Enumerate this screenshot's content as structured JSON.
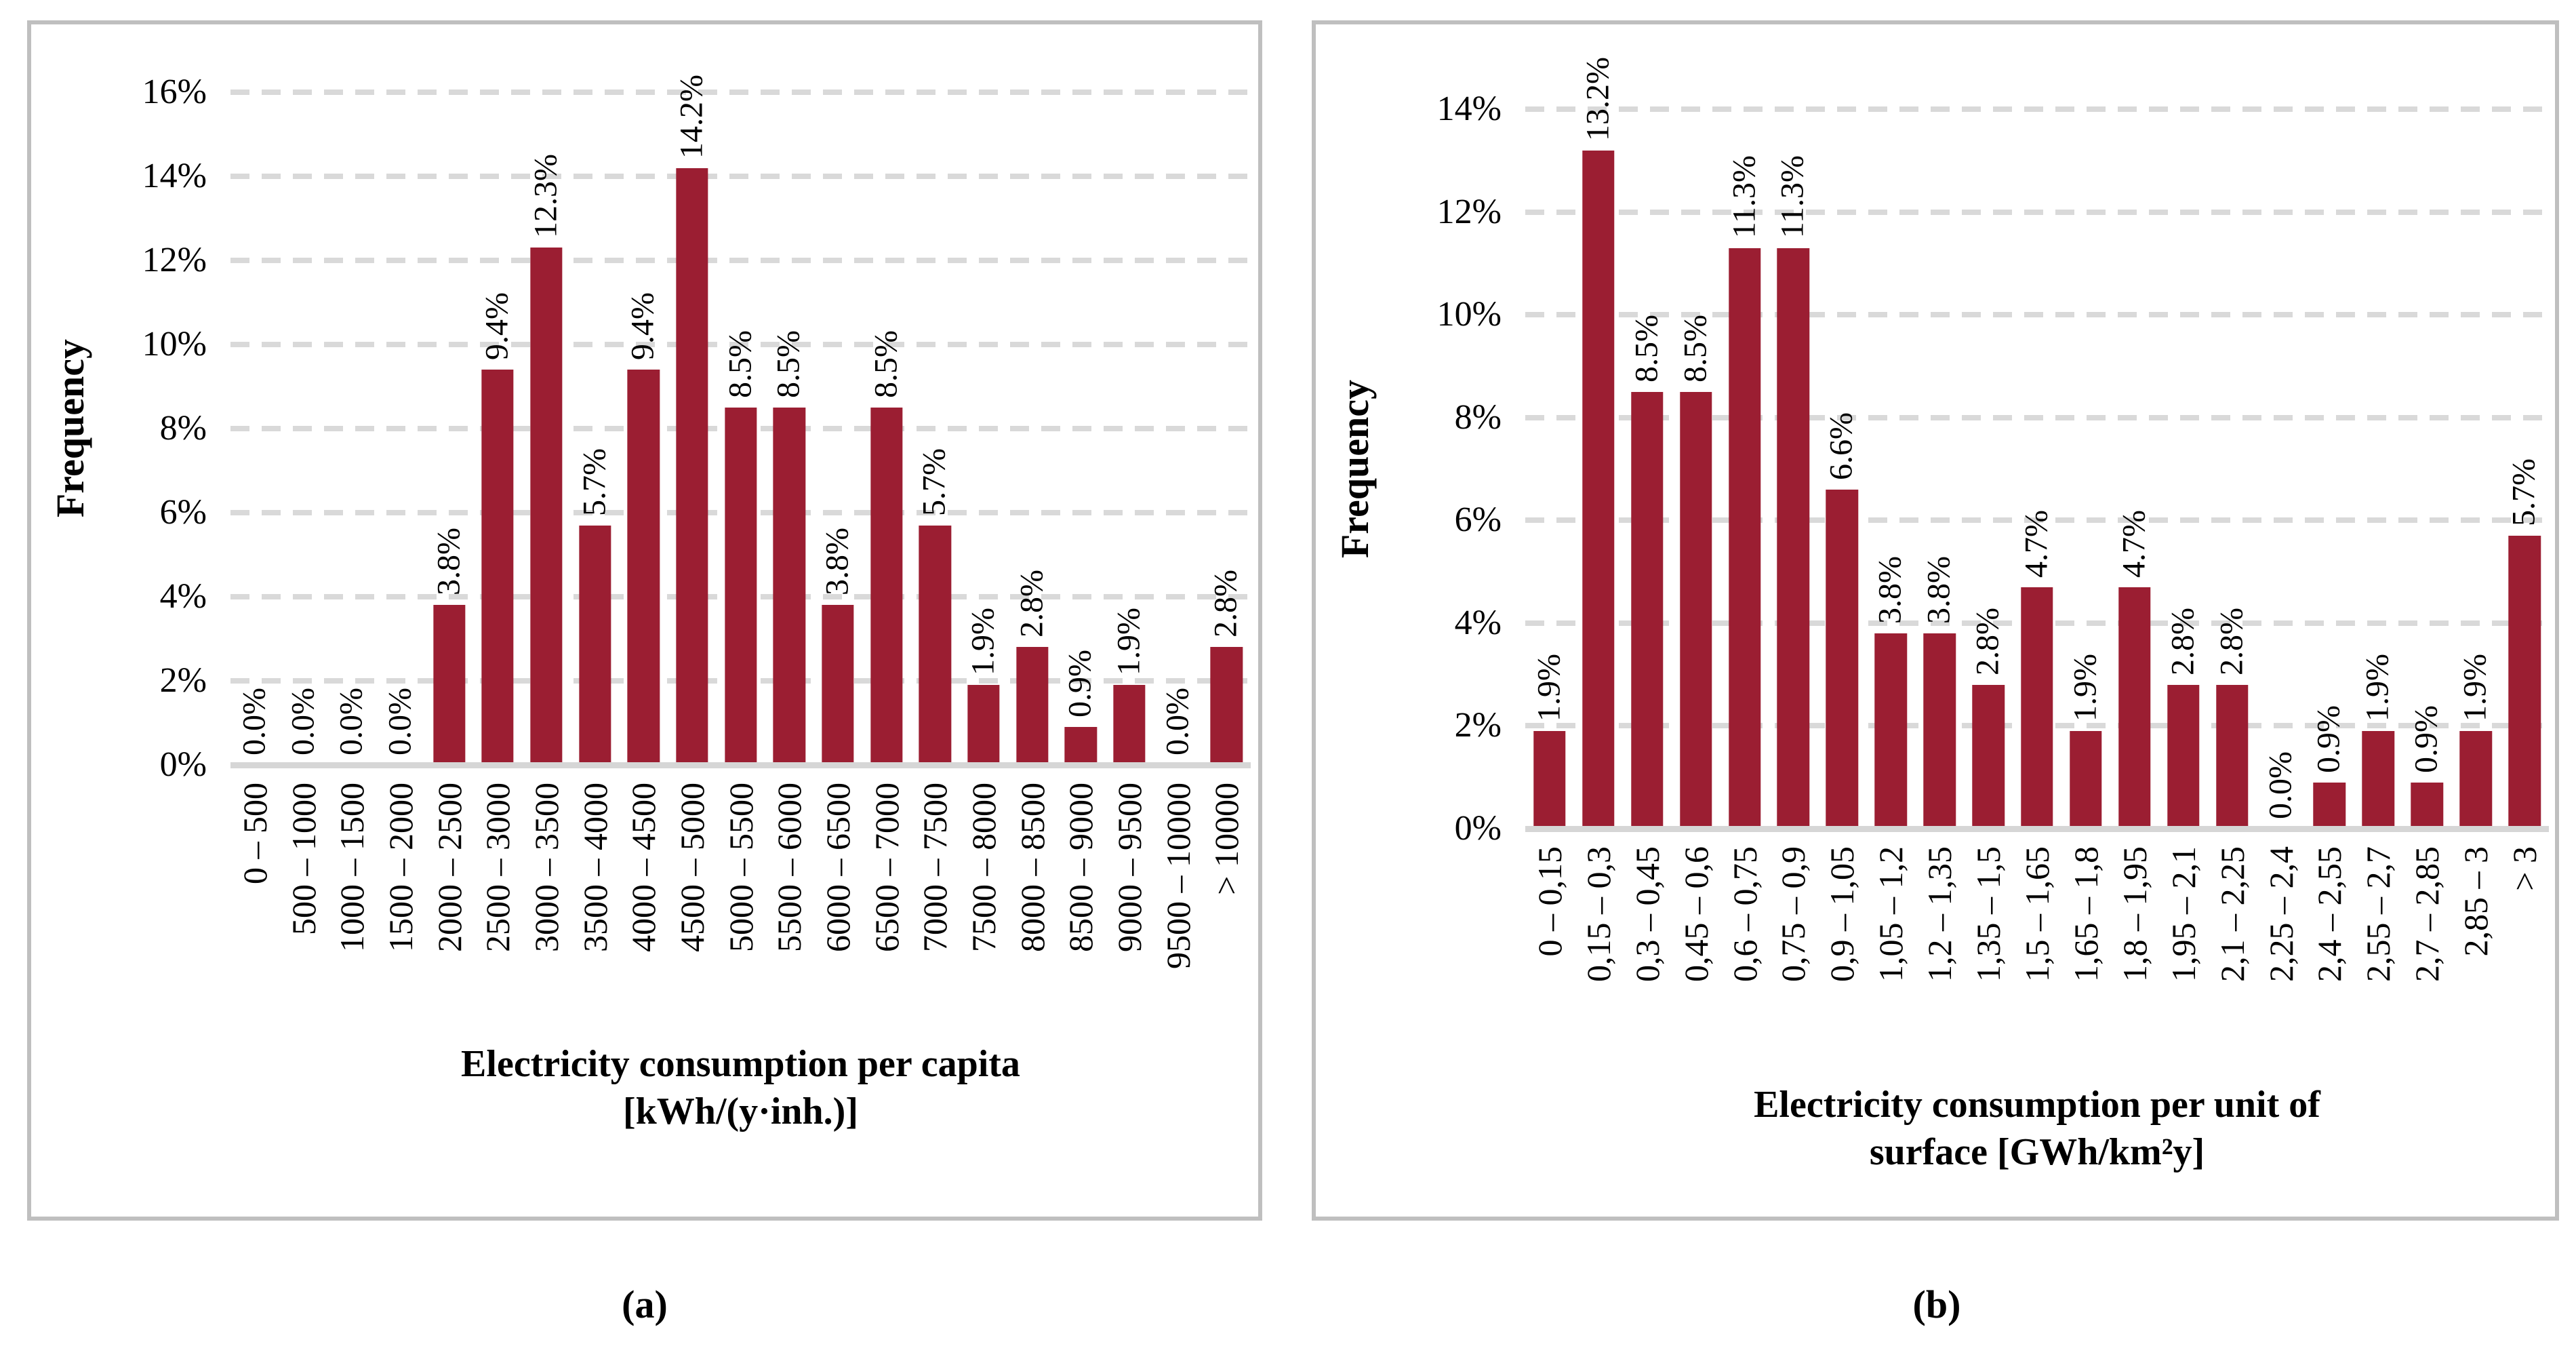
{
  "page": {
    "background": "#ffffff",
    "border_color": "#bfbfbf",
    "gridline_color": "#d9d9d9",
    "axisline_color": "#d6d6d6"
  },
  "chart_data": [
    {
      "type": "bar",
      "caption": "(a)",
      "ylabel": "Frequency",
      "xlabel_lines": [
        "Electricity consumption per capita",
        "[kWh/(y·inh.)]"
      ],
      "ylim": [
        0,
        16
      ],
      "yticks": [
        "0%",
        "2%",
        "4%",
        "6%",
        "8%",
        "10%",
        "12%",
        "14%",
        "16%"
      ],
      "grid": "dashed-horizontal",
      "legend": "none",
      "bar_color": "#9B1E32",
      "categories": [
        "0 – 500",
        "500 – 1000",
        "1000 – 1500",
        "1500 – 2000",
        "2000 – 2500",
        "2500 – 3000",
        "3000 – 3500",
        "3500 – 4000",
        "4000 – 4500",
        "4500 – 5000",
        "5000 – 5500",
        "5500 – 6000",
        "6000 – 6500",
        "6500 – 7000",
        "7000 – 7500",
        "7500 – 8000",
        "8000 – 8500",
        "8500 – 9000",
        "9000 – 9500",
        "9500 – 10000",
        "> 10000"
      ],
      "values": [
        0.0,
        0.0,
        0.0,
        0.0,
        3.8,
        9.4,
        12.3,
        5.7,
        9.4,
        14.2,
        8.5,
        8.5,
        3.8,
        8.5,
        5.7,
        1.9,
        2.8,
        0.9,
        1.9,
        0.0,
        2.8
      ],
      "value_labels": [
        "0.0%",
        "0.0%",
        "0.0%",
        "0.0%",
        "3.8%",
        "9.4%",
        "12.3%",
        "5.7%",
        "9.4%",
        "14.2%",
        "8.5%",
        "8.5%",
        "3.8%",
        "8.5%",
        "5.7%",
        "1.9%",
        "2.8%",
        "0.9%",
        "1.9%",
        "0.0%",
        "2.8%"
      ]
    },
    {
      "type": "bar",
      "caption": "(b)",
      "ylabel": "Frequency",
      "xlabel_lines": [
        "Electricity consumption per unit of",
        "surface  [GWh/km²y]"
      ],
      "ylim": [
        0,
        14
      ],
      "yticks": [
        "0%",
        "2%",
        "4%",
        "6%",
        "8%",
        "10%",
        "12%",
        "14%"
      ],
      "grid": "dashed-horizontal",
      "legend": "none",
      "bar_color": "#9B1E32",
      "categories": [
        "0 – 0,15",
        "0,15 – 0,3",
        "0,3 – 0,45",
        "0,45 – 0,6",
        "0,6 – 0,75",
        "0,75 – 0,9",
        "0,9 – 1,05",
        "1,05 – 1,2",
        "1,2 – 1,35",
        "1,35 – 1,5",
        "1,5 – 1,65",
        "1,65 – 1,8",
        "1,8 – 1,95",
        "1,95 – 2,1",
        "2,1 – 2,25",
        "2,25 – 2,4",
        "2,4 – 2,55",
        "2,55 – 2,7",
        "2,7 – 2,85",
        "2,85 – 3",
        "> 3"
      ],
      "values": [
        1.9,
        13.2,
        8.5,
        8.5,
        11.3,
        11.3,
        6.6,
        3.8,
        3.8,
        2.8,
        4.7,
        1.9,
        4.7,
        2.8,
        2.8,
        0.0,
        0.9,
        1.9,
        0.9,
        1.9,
        5.7
      ],
      "value_labels": [
        "1.9%",
        "13.2%",
        "8.5%",
        "8.5%",
        "11.3%",
        "11.3%",
        "6.6%",
        "3.8%",
        "3.8%",
        "2.8%",
        "4.7%",
        "1.9%",
        "4.7%",
        "2.8%",
        "2.8%",
        "0.0%",
        "0.9%",
        "1.9%",
        "0.9%",
        "1.9%",
        "5.7%"
      ]
    }
  ]
}
